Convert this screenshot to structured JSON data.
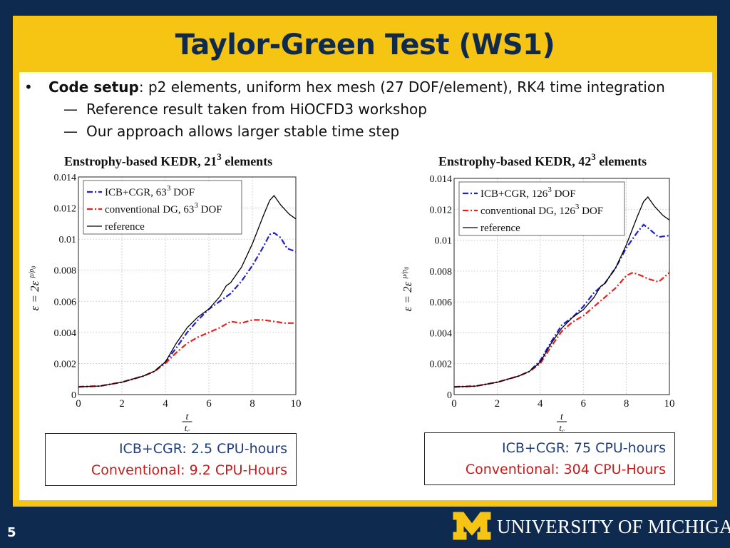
{
  "slide": {
    "title": "Taylor-Green Test (WS1)",
    "page_number": "5",
    "university": "UNIVERSITY OF MICHIGAN",
    "colors": {
      "background": "#0e2a4e",
      "frame": "#f6c514",
      "icb": "#1f3e7a",
      "conventional": "#c81a1a"
    }
  },
  "bullets": {
    "main_bold": "Code setup",
    "main_rest": ": p2 elements, uniform hex mesh (27 DOF/element), RK4 time integration",
    "sub": [
      "Reference result taken from HiOCFD3 workshop",
      "Our approach allows larger stable time step"
    ]
  },
  "results": [
    {
      "icb": "ICB+CGR: 2.5 CPU-hours",
      "conventional": "Conventional: 9.2 CPU-Hours"
    },
    {
      "icb": "ICB+CGR: 75 CPU-hours",
      "conventional": "Conventional: 304 CPU-Hours"
    }
  ],
  "chart_data": [
    {
      "type": "line",
      "title": "Enstrophy-based KEDR, 21",
      "title_exp": "3",
      "title_tail": " elements",
      "xlabel": "t / t_c",
      "ylabel": "ε = 2ε μ/ρ0",
      "xlim": [
        0,
        10
      ],
      "ylim": [
        0,
        0.014
      ],
      "xticks": [
        "0",
        "2",
        "4",
        "6",
        "8",
        "10"
      ],
      "yticks": [
        "0",
        "0.002",
        "0.004",
        "0.006",
        "0.008",
        "0.01",
        "0.012",
        "0.014"
      ],
      "grid": true,
      "legend_position": "top-left",
      "series": [
        {
          "name": "ICB+CGR, 63",
          "exp": "3",
          "tail": " DOF",
          "color": "#1f1fd6",
          "dash": "8 3 2 3",
          "x": [
            0,
            1,
            2,
            3,
            3.5,
            4,
            4.5,
            5,
            5.5,
            6,
            6.5,
            7,
            7.5,
            8,
            8.5,
            8.8,
            9.0,
            9.3,
            9.6,
            10
          ],
          "y": [
            0.0005,
            0.00055,
            0.0008,
            0.0012,
            0.0015,
            0.0021,
            0.003,
            0.004,
            0.0048,
            0.0055,
            0.006,
            0.0065,
            0.0073,
            0.0083,
            0.0095,
            0.0103,
            0.0104,
            0.0101,
            0.0094,
            0.0092
          ]
        },
        {
          "name": "conventional DG, 63",
          "exp": "3",
          "tail": " DOF",
          "color": "#e8201a",
          "dash": "8 3 2 3",
          "x": [
            0,
            1,
            2,
            3,
            3.5,
            4,
            4.5,
            5,
            5.5,
            6,
            6.5,
            7,
            7.5,
            8,
            8.5,
            9,
            9.5,
            10
          ],
          "y": [
            0.0005,
            0.00055,
            0.0008,
            0.0012,
            0.0015,
            0.002,
            0.0027,
            0.0033,
            0.0037,
            0.004,
            0.0043,
            0.0047,
            0.0046,
            0.0048,
            0.0048,
            0.0047,
            0.0046,
            0.0046
          ]
        },
        {
          "name": "reference",
          "color": "#000000",
          "dash": "",
          "x": [
            0,
            1,
            2,
            3,
            3.5,
            4,
            4.5,
            5,
            5.5,
            6,
            6.5,
            6.8,
            7,
            7.5,
            8,
            8.5,
            8.8,
            9.0,
            9.3,
            9.7,
            10
          ],
          "y": [
            0.0005,
            0.00055,
            0.0008,
            0.0012,
            0.0015,
            0.0021,
            0.0033,
            0.0043,
            0.005,
            0.0055,
            0.0063,
            0.007,
            0.0072,
            0.0082,
            0.0097,
            0.0115,
            0.0125,
            0.0128,
            0.0122,
            0.0116,
            0.0113
          ]
        }
      ]
    },
    {
      "type": "line",
      "title": "Enstrophy-based KEDR, 42",
      "title_exp": "3",
      "title_tail": " elements",
      "xlabel": "t / t_c",
      "ylabel": "ε = 2ε μ/ρ0",
      "xlim": [
        0,
        10
      ],
      "ylim": [
        0,
        0.014
      ],
      "xticks": [
        "0",
        "2",
        "4",
        "6",
        "8",
        "10"
      ],
      "yticks": [
        "0",
        "0.002",
        "0.004",
        "0.006",
        "0.008",
        "0.01",
        "0.012",
        "0.014"
      ],
      "grid": true,
      "legend_position": "top-left",
      "series": [
        {
          "name": "ICB+CGR, 126",
          "exp": "3",
          "tail": " DOF",
          "color": "#1f1fd6",
          "dash": "8 3 2 3",
          "x": [
            0,
            1,
            2,
            3,
            3.5,
            4,
            4.5,
            5,
            5.5,
            6,
            6.5,
            7,
            7.5,
            8,
            8.5,
            8.8,
            9.0,
            9.5,
            10
          ],
          "y": [
            0.0005,
            0.00055,
            0.0008,
            0.0012,
            0.0015,
            0.0022,
            0.0034,
            0.0045,
            0.005,
            0.0057,
            0.0066,
            0.0072,
            0.0082,
            0.0095,
            0.0105,
            0.011,
            0.0108,
            0.0102,
            0.0103
          ]
        },
        {
          "name": "conventional DG, 126",
          "exp": "3",
          "tail": " DOF",
          "color": "#e8201a",
          "dash": "8 3 2 3",
          "x": [
            0,
            1,
            2,
            3,
            3.5,
            4,
            4.5,
            5,
            5.5,
            6,
            6.5,
            7,
            7.5,
            8,
            8.3,
            8.7,
            9.0,
            9.5,
            10
          ],
          "y": [
            0.0005,
            0.00055,
            0.0008,
            0.0012,
            0.0015,
            0.002,
            0.0031,
            0.0041,
            0.0047,
            0.0051,
            0.0057,
            0.0063,
            0.0069,
            0.0077,
            0.0079,
            0.0077,
            0.0075,
            0.0073,
            0.0079
          ]
        },
        {
          "name": "reference",
          "color": "#000000",
          "dash": "",
          "x": [
            0,
            1,
            2,
            3,
            3.5,
            4,
            4.5,
            5,
            5.5,
            6,
            6.5,
            6.8,
            7,
            7.5,
            8,
            8.5,
            8.8,
            9.0,
            9.3,
            9.7,
            10
          ],
          "y": [
            0.0005,
            0.00055,
            0.0008,
            0.0012,
            0.0015,
            0.0021,
            0.0033,
            0.0043,
            0.005,
            0.0055,
            0.0063,
            0.007,
            0.0072,
            0.0082,
            0.0097,
            0.0115,
            0.0125,
            0.0128,
            0.0122,
            0.0116,
            0.0113
          ]
        }
      ]
    }
  ]
}
